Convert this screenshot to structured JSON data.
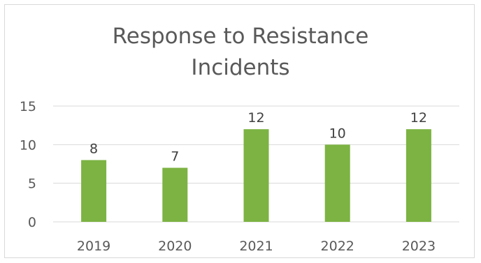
{
  "chart_data": {
    "type": "bar",
    "title_lines": [
      "Response to Resistance",
      "Incidents"
    ],
    "categories": [
      "2019",
      "2020",
      "2021",
      "2022",
      "2023"
    ],
    "values": [
      8,
      7,
      12,
      10,
      12
    ],
    "data_labels": [
      "8",
      "7",
      "12",
      "10",
      "12"
    ],
    "y_ticks": [
      0,
      5,
      10,
      15
    ],
    "y_tick_labels": [
      "0",
      "5",
      "10",
      "15"
    ],
    "ylim": [
      0,
      15
    ],
    "grid": true,
    "legend": "none",
    "bar_color": "#7cb342",
    "grid_color": "#d9d9d9"
  }
}
